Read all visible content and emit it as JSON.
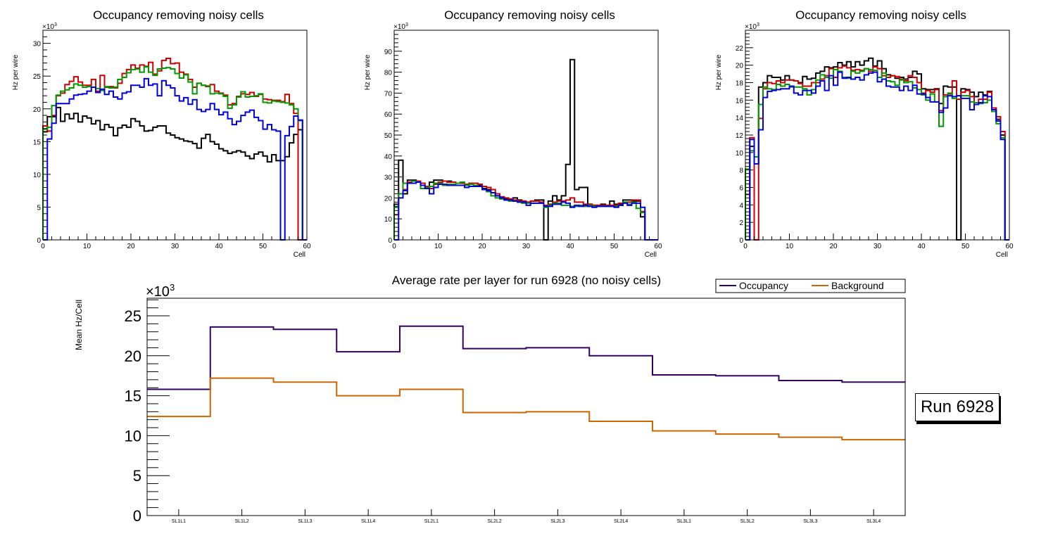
{
  "chart_data": [
    {
      "type": "histogram-step",
      "title": "Occupancy removing noisy cells",
      "xlabel": "Cell",
      "ylabel": "Hz per wire",
      "yscale_label": "×10^3",
      "xlim": [
        0,
        60
      ],
      "ylim": [
        0,
        32
      ],
      "xticks": [
        0,
        10,
        20,
        30,
        40,
        50,
        60
      ],
      "yticks": [
        0,
        5,
        10,
        15,
        20,
        25,
        30
      ],
      "bin_width": 1,
      "series": [
        {
          "name": "black",
          "color": "#000000",
          "values": [
            16.5,
            18.8,
            18.8,
            20.2,
            18.1,
            19.2,
            18.5,
            19.3,
            18.0,
            18.9,
            18.6,
            17.7,
            18.2,
            16.8,
            17.6,
            17.2,
            15.9,
            17.1,
            17.5,
            17.2,
            18.5,
            18.1,
            17.4,
            16.6,
            16.7,
            17.2,
            17.4,
            17.4,
            16.3,
            16.0,
            15.6,
            15.4,
            15.1,
            15.0,
            14.7,
            14.0,
            15.5,
            16.1,
            15.0,
            14.6,
            13.9,
            13.6,
            13.2,
            13.4,
            13.6,
            13.4,
            12.8,
            12.4,
            13.1,
            13.4,
            12.8,
            11.9,
            13.0,
            12.1,
            12.1,
            12.7,
            14.8,
            16.1,
            16.8,
            0
          ]
        },
        {
          "name": "red",
          "color": "#cc0000",
          "values": [
            17.4,
            16.6,
            19.0,
            22.0,
            22.4,
            23.7,
            24.2,
            24.9,
            24.1,
            23.6,
            23.6,
            24.5,
            22.7,
            25.1,
            23.3,
            23.4,
            23.2,
            23.9,
            25.4,
            26.0,
            26.7,
            26.2,
            26.7,
            26.5,
            27.1,
            25.3,
            25.8,
            27.4,
            27.7,
            26.9,
            27.0,
            25.6,
            25.3,
            24.5,
            23.3,
            23.9,
            23.6,
            23.4,
            23.7,
            22.7,
            22.4,
            22.1,
            20.6,
            20.8,
            21.9,
            22.3,
            22.2,
            22.5,
            21.9,
            22.2,
            21.5,
            21.4,
            21.3,
            21.3,
            21.1,
            22.2,
            20.8,
            19.3,
            0,
            0
          ]
        },
        {
          "name": "green",
          "color": "#009900",
          "values": [
            16.9,
            17.2,
            20.5,
            22.1,
            22.7,
            22.9,
            23.2,
            23.8,
            23.6,
            23.3,
            23.4,
            23.3,
            23.1,
            22.8,
            23.4,
            23.2,
            23.3,
            24.5,
            24.8,
            25.5,
            26.0,
            26.1,
            25.6,
            26.4,
            25.6,
            25.1,
            26.1,
            26.2,
            26.3,
            26.1,
            25.4,
            24.7,
            25.2,
            24.1,
            22.3,
            23.9,
            23.6,
            23.5,
            22.3,
            22.4,
            22.3,
            21.9,
            20.1,
            20.6,
            21.8,
            22.6,
            21.8,
            21.9,
            22.0,
            22.3,
            21.0,
            20.9,
            21.2,
            21.1,
            21.0,
            20.9,
            20.6,
            20.0,
            18.2,
            0
          ]
        },
        {
          "name": "blue",
          "color": "#0000dd",
          "values": [
            0,
            15.4,
            17.8,
            20.8,
            20.8,
            20.8,
            21.5,
            22.1,
            22.2,
            22.3,
            22.7,
            23.3,
            22.5,
            23.0,
            22.2,
            22.7,
            21.8,
            21.5,
            22.4,
            22.6,
            23.6,
            23.6,
            23.3,
            24.6,
            23.6,
            23.8,
            22.0,
            24.3,
            23.6,
            23.2,
            22.0,
            21.2,
            21.7,
            20.7,
            21.4,
            19.9,
            19.6,
            19.9,
            20.8,
            19.9,
            19.1,
            19.5,
            18.5,
            17.6,
            18.1,
            19.0,
            19.5,
            19.8,
            18.7,
            18.2,
            16.9,
            17.6,
            16.8,
            16.6,
            0,
            15.9,
            17.3,
            18.9,
            18.3,
            0
          ]
        }
      ]
    },
    {
      "type": "histogram-step",
      "title": "Occupancy removing noisy cells",
      "xlabel": "Cell",
      "ylabel": "Hz per wire",
      "yscale_label": "×10^3",
      "xlim": [
        0,
        60
      ],
      "ylim": [
        0,
        100
      ],
      "xticks": [
        0,
        10,
        20,
        30,
        40,
        50,
        60
      ],
      "yticks": [
        0,
        10,
        20,
        30,
        40,
        50,
        60,
        70,
        80,
        90
      ],
      "bin_width": 1,
      "series": [
        {
          "name": "black",
          "color": "#000000",
          "values": [
            17,
            38,
            22,
            28.5,
            28.5,
            27.5,
            26,
            25.5,
            27.5,
            28.5,
            28.5,
            28,
            28,
            27.5,
            27,
            27,
            26,
            27,
            27,
            26,
            24.5,
            24,
            22.5,
            21,
            20.5,
            19.5,
            19.5,
            20,
            19,
            18.5,
            18,
            18.5,
            19,
            19,
            0,
            18.5,
            21,
            19,
            21,
            36,
            86,
            24,
            25,
            25,
            17,
            16.5,
            16.5,
            17,
            16.5,
            18.5,
            17,
            17,
            19,
            19,
            18.5,
            18.5,
            11,
            0,
            0,
            0
          ]
        },
        {
          "name": "red",
          "color": "#cc0000",
          "values": [
            12,
            22,
            24,
            27.5,
            28,
            28,
            27,
            25.5,
            24.5,
            26.5,
            27.5,
            28,
            27.5,
            27.5,
            27,
            27,
            26.5,
            27,
            27,
            26.5,
            25.5,
            25,
            24,
            22,
            20.5,
            20,
            19.5,
            19,
            18.5,
            18.5,
            18,
            18.5,
            18.5,
            18,
            16.5,
            17,
            18,
            18.5,
            18.5,
            19,
            20,
            18,
            18,
            17,
            17,
            16.5,
            16.5,
            16.5,
            16.5,
            16.5,
            16.5,
            17.5,
            18,
            18,
            19,
            19,
            13.5,
            0,
            0,
            0
          ]
        },
        {
          "name": "green",
          "color": "#009900",
          "values": [
            15.5,
            22,
            27,
            27,
            28,
            27.5,
            24.5,
            25,
            25.5,
            27,
            27,
            26,
            26.5,
            26.5,
            27,
            27.5,
            26,
            26.5,
            26,
            25.5,
            24,
            23,
            21,
            20,
            19.5,
            19,
            18.5,
            18.5,
            18,
            17.5,
            17.5,
            17.5,
            17.5,
            17.5,
            15.5,
            16.5,
            17.5,
            17.5,
            16.5,
            16.5,
            16,
            16,
            16.5,
            16,
            16.5,
            16,
            16,
            16,
            16,
            16,
            16,
            16.5,
            18,
            17,
            18,
            15,
            13,
            0,
            0,
            0
          ]
        },
        {
          "name": "blue",
          "color": "#0000dd",
          "values": [
            0,
            20,
            23.5,
            27,
            27,
            27.5,
            26,
            24.5,
            22,
            25,
            26.5,
            26.5,
            26,
            26,
            26,
            26,
            25,
            25.5,
            25.5,
            25.5,
            24,
            23.5,
            22.5,
            21,
            20,
            19,
            19,
            18.5,
            18,
            18,
            16.5,
            17.5,
            17.5,
            17.5,
            16,
            16,
            17,
            17,
            18,
            17.5,
            15.5,
            16.5,
            16,
            16.5,
            16,
            15.5,
            16,
            16,
            16,
            16,
            15.5,
            16.5,
            17.5,
            16.5,
            17.5,
            17.5,
            15.5,
            0,
            0,
            0
          ]
        }
      ]
    },
    {
      "type": "histogram-step",
      "title": "Occupancy removing noisy cells",
      "xlabel": "Cell",
      "ylabel": "Hz per wire",
      "yscale_label": "×10^3",
      "xlim": [
        0,
        60
      ],
      "ylim": [
        0,
        24
      ],
      "xticks": [
        0,
        10,
        20,
        30,
        40,
        50,
        60
      ],
      "yticks": [
        0,
        2,
        4,
        6,
        8,
        10,
        12,
        14,
        16,
        18,
        20,
        22
      ],
      "bin_width": 1,
      "series": [
        {
          "name": "black",
          "color": "#000000",
          "values": [
            0,
            10.7,
            8.7,
            17.5,
            18.0,
            18.8,
            18.6,
            18.6,
            18.3,
            18.8,
            18.3,
            18.2,
            18.0,
            18.7,
            18.4,
            18.5,
            19.1,
            19.3,
            19.8,
            19.7,
            19.8,
            20.3,
            20.0,
            20.4,
            19.8,
            20.4,
            20.0,
            20.5,
            20.8,
            19.9,
            20.5,
            19.6,
            18.9,
            18.8,
            18.5,
            18.6,
            18.4,
            18.6,
            19.3,
            19.0,
            17.3,
            17.2,
            17.2,
            17.3,
            15.6,
            17.6,
            17.5,
            17.5,
            0,
            17.3,
            17.2,
            16.9,
            16.4,
            16.9,
            16.6,
            17.0,
            15.1,
            13.8,
            12.0,
            0
          ]
        },
        {
          "name": "red",
          "color": "#cc0000",
          "values": [
            5.2,
            11.7,
            0,
            13.9,
            17.3,
            18.0,
            17.9,
            18.2,
            18.0,
            18.3,
            18.3,
            18.2,
            17.9,
            17.6,
            17.6,
            18.0,
            18.0,
            18.4,
            18.8,
            19.6,
            18.6,
            19.7,
            19.9,
            19.7,
            19.4,
            19.5,
            19.4,
            19.6,
            19.3,
            19.8,
            19.6,
            18.8,
            18.6,
            18.8,
            18.7,
            18.4,
            18.2,
            18.8,
            18.6,
            18.0,
            16.8,
            17.1,
            16.9,
            17.2,
            14.8,
            16.6,
            16.7,
            18.2,
            16.1,
            16.9,
            17.1,
            16.4,
            15.5,
            16.1,
            16.1,
            16.9,
            15.1,
            14.1,
            12.4,
            0
          ]
        },
        {
          "name": "green",
          "color": "#009900",
          "values": [
            8.1,
            10.2,
            9.5,
            15.5,
            17.5,
            17.3,
            17.2,
            17.8,
            17.6,
            17.8,
            17.5,
            17.5,
            17.5,
            17.3,
            16.6,
            17.2,
            18.3,
            18.9,
            18.6,
            18.5,
            19.5,
            19.3,
            18.6,
            18.5,
            19.3,
            19.1,
            19.3,
            19.6,
            19.5,
            19.4,
            18.6,
            19.1,
            18.2,
            18.1,
            17.7,
            18.3,
            18.0,
            18.1,
            17.4,
            17.2,
            16.6,
            16.0,
            16.7,
            15.8,
            13.0,
            16.4,
            16.8,
            16.2,
            16.5,
            16.5,
            16.5,
            15.8,
            15.7,
            15.6,
            15.7,
            16.0,
            14.7,
            13.3,
            11.7,
            0
          ]
        },
        {
          "name": "blue",
          "color": "#0000dd",
          "values": [
            0,
            11.5,
            8.7,
            12.6,
            16.3,
            17.0,
            17.1,
            17.2,
            17.3,
            17.3,
            17.6,
            16.8,
            16.6,
            17.1,
            17.1,
            16.8,
            17.6,
            18.2,
            17.1,
            18.8,
            17.7,
            19.2,
            18.5,
            18.6,
            18.4,
            18.6,
            18.3,
            18.9,
            19.1,
            19.2,
            18.1,
            18.4,
            17.6,
            17.5,
            17.5,
            17.1,
            17.6,
            17.1,
            17.7,
            16.7,
            16.7,
            16.3,
            15.8,
            15.8,
            14.6,
            15.1,
            16.5,
            16.4,
            16.5,
            16.2,
            16.2,
            14.9,
            15.5,
            15.7,
            16.5,
            16.4,
            14.9,
            13.6,
            11.5,
            0
          ]
        }
      ]
    },
    {
      "type": "histogram-step",
      "title": "Average rate per layer for run 6928 (no noisy cells)",
      "xlabel": "",
      "ylabel": "Mean Hz/Cell",
      "yscale_label": "×10^3",
      "ylim": [
        0,
        27.2
      ],
      "yticks": [
        0,
        5,
        10,
        15,
        20,
        25
      ],
      "categories": [
        "SL1L1",
        "SL1L2",
        "SL1L3",
        "SL1L4",
        "SL2L1",
        "SL2L2",
        "SL2L3",
        "SL2L4",
        "SL3L1",
        "SL3L2",
        "SL3L3",
        "SL3L4"
      ],
      "legend": {
        "placement": "top-right",
        "entries": [
          "Occupancy",
          "Background"
        ]
      },
      "series": [
        {
          "name": "Occupancy",
          "color": "#330066",
          "values": [
            15.8,
            23.6,
            23.3,
            20.5,
            23.7,
            20.9,
            21.0,
            20.0,
            17.6,
            17.5,
            16.9,
            16.7
          ]
        },
        {
          "name": "Background",
          "color": "#cc6600",
          "values": [
            12.4,
            17.2,
            16.7,
            15.0,
            15.8,
            12.9,
            13.0,
            11.8,
            10.6,
            10.2,
            9.8,
            9.5
          ]
        }
      ]
    }
  ],
  "annotation": {
    "run_label": "Run 6928"
  }
}
